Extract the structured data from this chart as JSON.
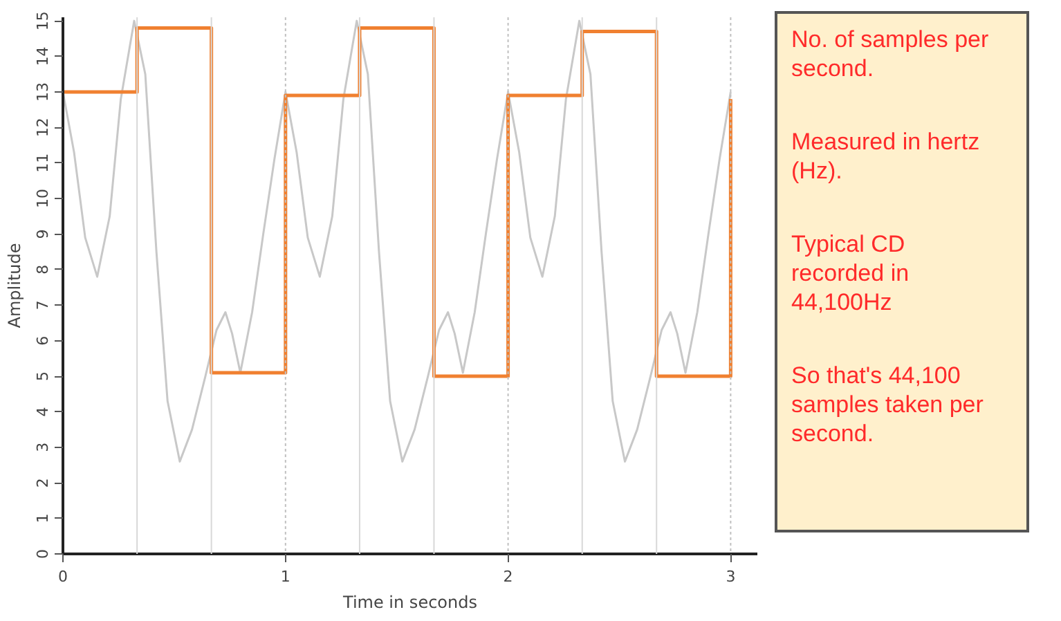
{
  "chart_data": {
    "type": "line",
    "xlabel": "Time in seconds",
    "ylabel": "Amplitude",
    "xlim": [
      0,
      3.12
    ],
    "ylim": [
      0,
      15.1
    ],
    "xticks": [
      0,
      1,
      2,
      3
    ],
    "yticks": [
      0,
      1,
      2,
      3,
      4,
      5,
      6,
      7,
      8,
      9,
      10,
      11,
      12,
      13,
      14,
      15
    ],
    "grid": false,
    "series": [
      {
        "color": "#c8c8c8",
        "x": [
          0,
          0.05,
          0.1,
          0.154,
          0.21,
          0.26,
          0.32,
          0.37,
          0.42,
          0.47,
          0.525,
          0.58,
          0.64,
          0.69,
          0.73,
          0.76,
          0.797,
          0.85,
          0.9,
          0.95,
          1.0,
          1.05,
          1.1,
          1.154,
          1.21,
          1.26,
          1.32,
          1.37,
          1.42,
          1.47,
          1.525,
          1.58,
          1.64,
          1.69,
          1.73,
          1.76,
          1.797,
          1.85,
          1.9,
          1.95,
          2.0,
          2.05,
          2.1,
          2.154,
          2.21,
          2.26,
          2.32,
          2.37,
          2.42,
          2.47,
          2.525,
          2.58,
          2.64,
          2.69,
          2.73,
          2.76,
          2.797,
          2.85,
          2.9,
          2.95,
          3.0
        ],
        "values": [
          13,
          11.3,
          8.9,
          7.8,
          9.5,
          12.8,
          15,
          13.5,
          8.5,
          4.3,
          2.6,
          3.5,
          5.0,
          6.3,
          6.8,
          6.2,
          5.1,
          6.8,
          9.0,
          11.1,
          13,
          11.3,
          8.9,
          7.8,
          9.5,
          12.8,
          15,
          13.5,
          8.5,
          4.3,
          2.6,
          3.5,
          5.0,
          6.3,
          6.8,
          6.2,
          5.1,
          6.8,
          9.0,
          11.1,
          13,
          11.3,
          8.9,
          7.8,
          9.5,
          12.8,
          15,
          13.5,
          8.5,
          4.3,
          2.6,
          3.5,
          5.0,
          6.3,
          6.8,
          6.2,
          5.1,
          6.8,
          9.0,
          11.1,
          13
        ]
      },
      {
        "type": "step",
        "color": "#f08030",
        "x": [
          0,
          0.333,
          0.667,
          1,
          1.333,
          1.667,
          2,
          2.333,
          2.667,
          3
        ],
        "values": [
          13,
          14.8,
          5.1,
          12.9,
          14.8,
          5.0,
          12.9,
          14.7,
          5.0,
          12.8
        ]
      }
    ],
    "ref_lines": [
      {
        "axis": "x",
        "value": 0.333,
        "color": "#d8d8d8",
        "line_style": "solid"
      },
      {
        "axis": "x",
        "value": 0.667,
        "color": "#d8d8d8",
        "line_style": "solid"
      },
      {
        "axis": "x",
        "value": 1,
        "color": "#c0c0c0",
        "line_style": "dotted"
      },
      {
        "axis": "x",
        "value": 1.333,
        "color": "#d8d8d8",
        "line_style": "solid"
      },
      {
        "axis": "x",
        "value": 1.667,
        "color": "#d8d8d8",
        "line_style": "solid"
      },
      {
        "axis": "x",
        "value": 2,
        "color": "#c0c0c0",
        "line_style": "dotted"
      },
      {
        "axis": "x",
        "value": 2.333,
        "color": "#d8d8d8",
        "line_style": "solid"
      },
      {
        "axis": "x",
        "value": 2.667,
        "color": "#d8d8d8",
        "line_style": "solid"
      },
      {
        "axis": "x",
        "value": 3,
        "color": "#c0c0c0",
        "line_style": "dotted"
      }
    ],
    "annotations": [
      "No. of samples per second.",
      "Measured in hertz (Hz).",
      "Typical CD recorded in 44,100Hz",
      "So that's 44,100 samples taken per second."
    ]
  }
}
